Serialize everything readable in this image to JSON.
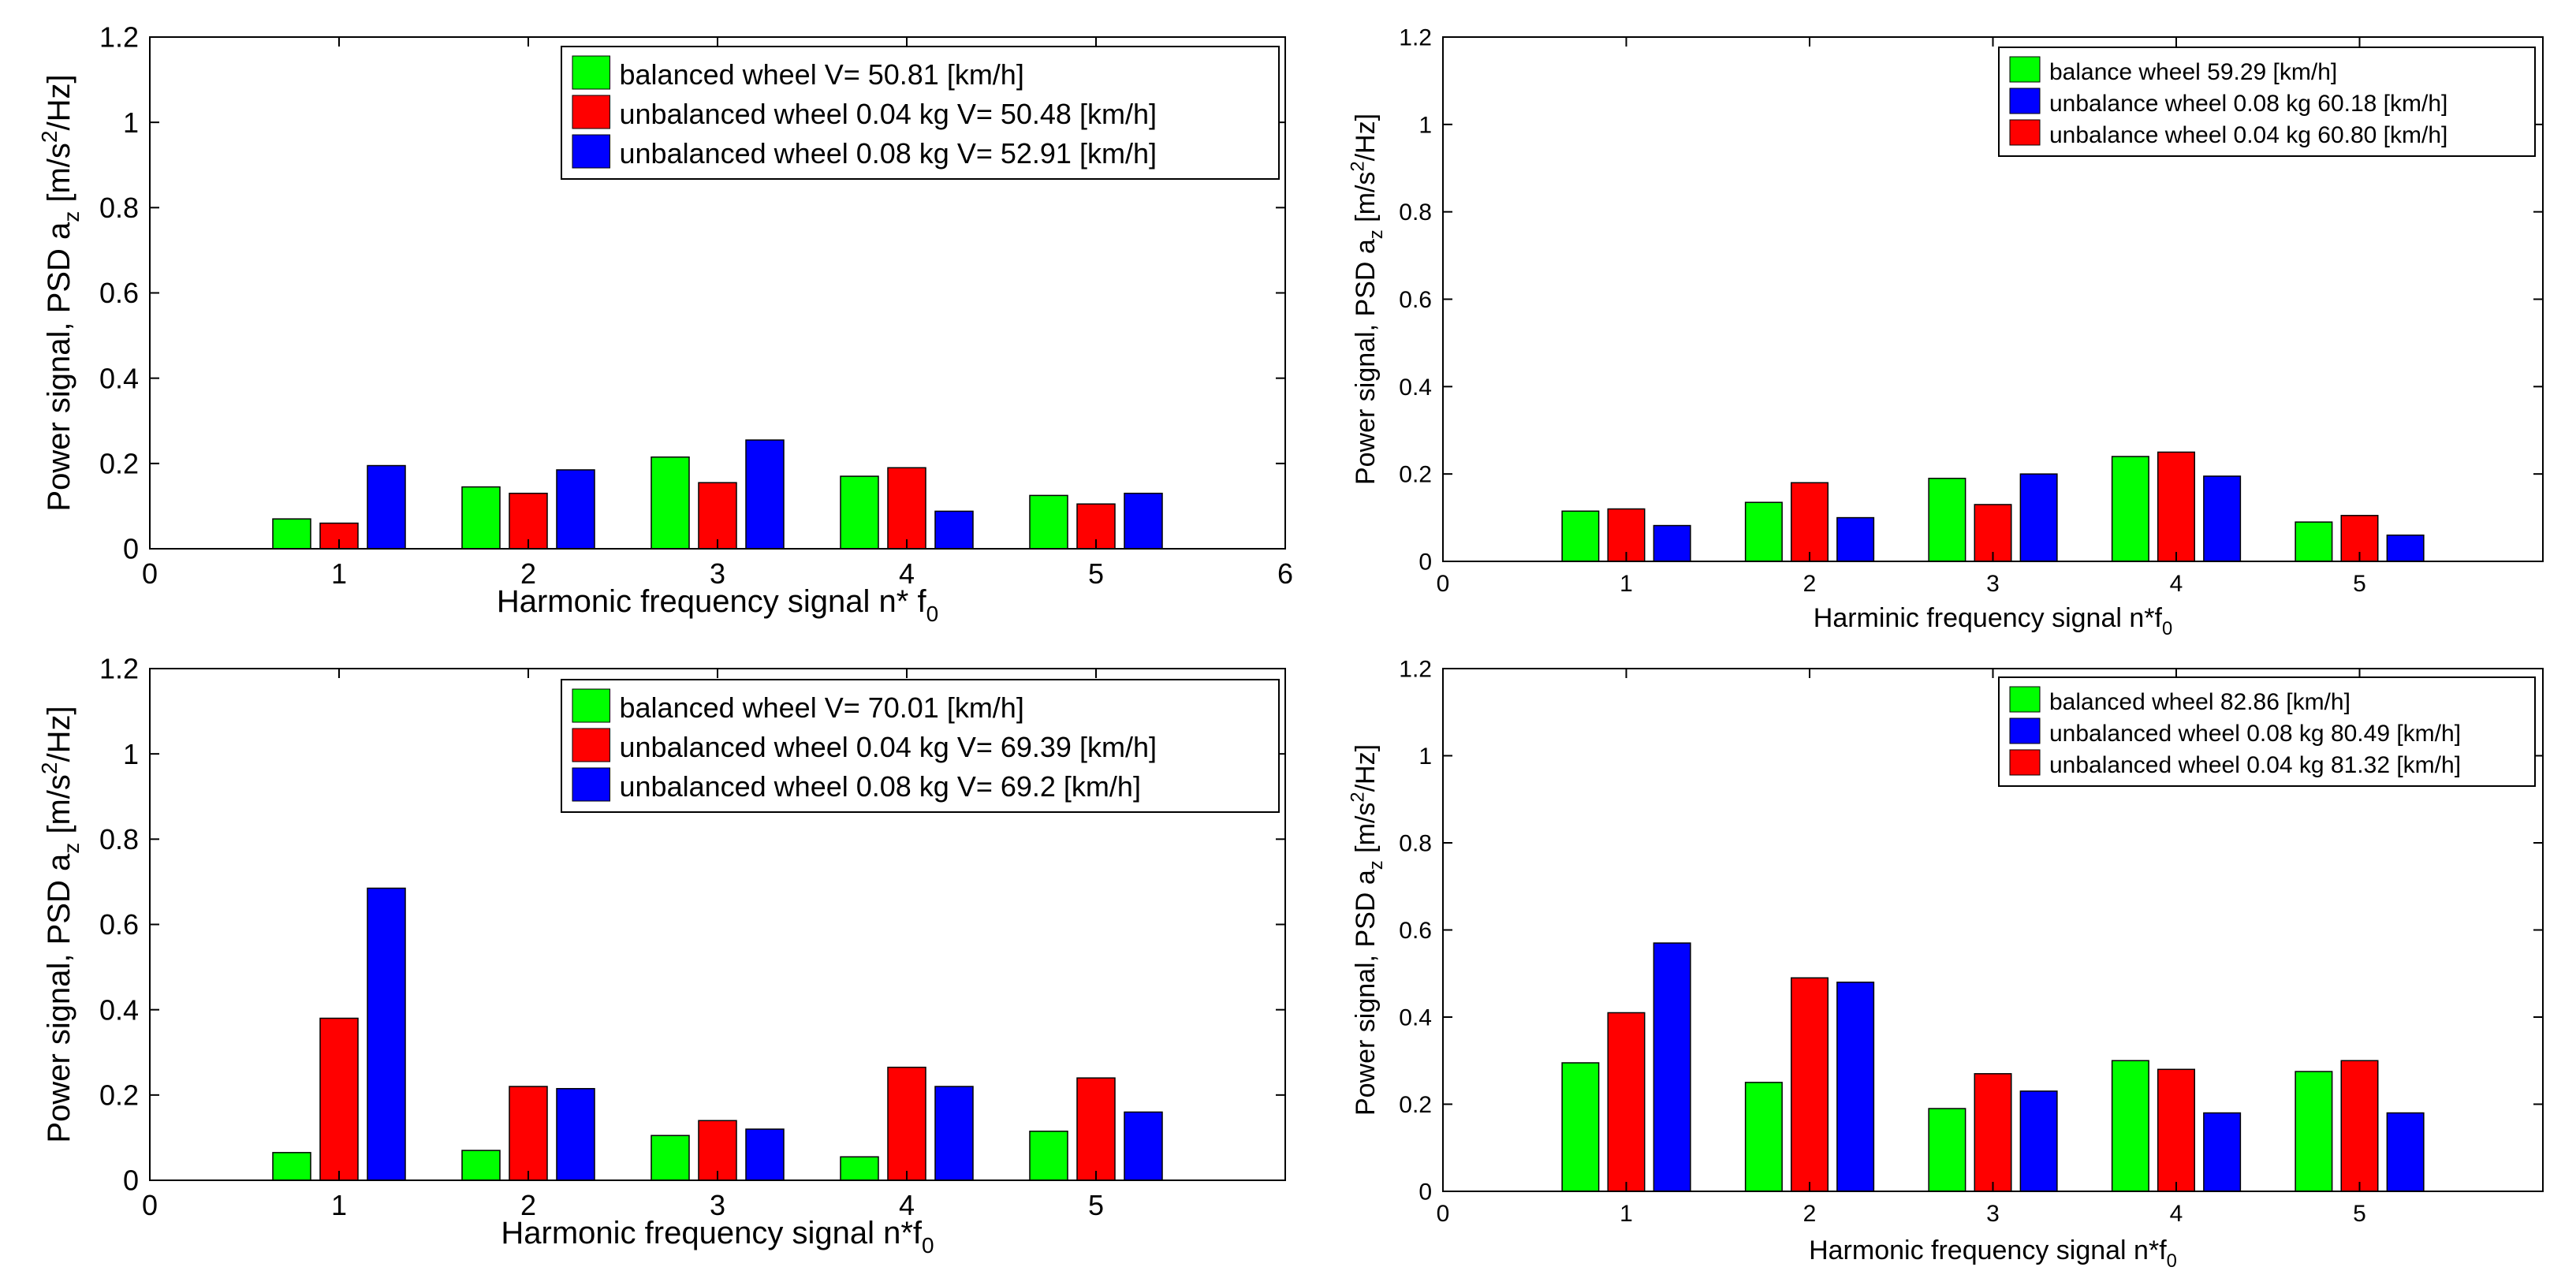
{
  "colors": {
    "green": "#00ff00",
    "red": "#ff0000",
    "blue": "#0000ff",
    "axis": "#000000"
  },
  "chart_data": [
    {
      "type": "bar",
      "title": "",
      "xlabel_main": "Harmonic frequency signal n* f",
      "xlabel_sub": "0",
      "ylabel_main": "Power signal, PSD a",
      "ylabel_sub": "z",
      "ylabel_unit_pre": " [m/s",
      "ylabel_unit_sup": "2",
      "ylabel_unit_post": "/Hz]",
      "xlim": [
        0,
        6
      ],
      "ylim": [
        0,
        1.2
      ],
      "xticks": [
        "0",
        "1",
        "2",
        "3",
        "4",
        "5",
        "6"
      ],
      "yticks": [
        "0",
        "0.2",
        "0.4",
        "0.6",
        "0.8",
        "1",
        "1.2"
      ],
      "categories": [
        1,
        2,
        3,
        4,
        5
      ],
      "series": [
        {
          "name": "balanced wheel V= 50.81 [km/h]",
          "color": "green",
          "values": [
            0.07,
            0.145,
            0.215,
            0.17,
            0.125
          ]
        },
        {
          "name": "unbalanced wheel 0.04 kg V= 50.48 [km/h]",
          "color": "red",
          "values": [
            0.06,
            0.13,
            0.155,
            0.19,
            0.105
          ]
        },
        {
          "name": "unbalanced wheel 0.08 kg V= 52.91 [km/h]",
          "color": "blue",
          "values": [
            0.195,
            0.185,
            0.255,
            0.088,
            0.13
          ]
        }
      ]
    },
    {
      "type": "bar",
      "title": "",
      "xlabel_main": "Harminic frequency signal n*f",
      "xlabel_sub": "0",
      "ylabel_main": "Power signal, PSD a",
      "ylabel_sub": "z",
      "ylabel_unit_pre": " [m/s",
      "ylabel_unit_sup": "2",
      "ylabel_unit_post": "/Hz]",
      "xlim": [
        0,
        6
      ],
      "ylim": [
        0,
        1.2
      ],
      "xticks": [
        "0",
        "1",
        "2",
        "3",
        "4",
        "5"
      ],
      "yticks": [
        "0",
        "0.2",
        "0.4",
        "0.6",
        "0.8",
        "1",
        "1.2"
      ],
      "categories": [
        1,
        2,
        3,
        4,
        5
      ],
      "series": [
        {
          "name": "balance wheel 59.29 [km/h]",
          "color": "green",
          "values": [
            0.115,
            0.135,
            0.19,
            0.24,
            0.09
          ]
        },
        {
          "name": "unbalance wheel 0.08 kg 60.18 [km/h]",
          "color": "blue",
          "values": [
            0.082,
            0.1,
            0.2,
            0.195,
            0.06
          ]
        },
        {
          "name": "unbalance wheel 0.04 kg 60.80 [km/h]",
          "color": "red",
          "values": [
            0.12,
            0.18,
            0.13,
            0.25,
            0.105
          ]
        }
      ],
      "bar_order": [
        0,
        2,
        1
      ]
    },
    {
      "type": "bar",
      "title": "",
      "xlabel_main": "Harmonic frequency signal n*f",
      "xlabel_sub": "0",
      "ylabel_main": "Power signal, PSD a",
      "ylabel_sub": "z",
      "ylabel_unit_pre": " [m/s",
      "ylabel_unit_sup": "2",
      "ylabel_unit_post": "/Hz]",
      "xlim": [
        0,
        6
      ],
      "ylim": [
        0,
        1.2
      ],
      "xticks": [
        "0",
        "1",
        "2",
        "3",
        "4",
        "5"
      ],
      "yticks": [
        "0",
        "0.2",
        "0.4",
        "0.6",
        "0.8",
        "1",
        "1.2"
      ],
      "categories": [
        1,
        2,
        3,
        4,
        5
      ],
      "series": [
        {
          "name": "balanced wheel V= 70.01 [km/h]",
          "color": "green",
          "values": [
            0.065,
            0.07,
            0.105,
            0.055,
            0.115
          ]
        },
        {
          "name": "unbalanced wheel 0.04 kg V= 69.39 [km/h]",
          "color": "red",
          "values": [
            0.38,
            0.22,
            0.14,
            0.265,
            0.24
          ]
        },
        {
          "name": "unbalanced wheel 0.08 kg V= 69.2 [km/h]",
          "color": "blue",
          "values": [
            0.685,
            0.215,
            0.12,
            0.22,
            0.16
          ]
        }
      ]
    },
    {
      "type": "bar",
      "title": "",
      "xlabel_main": "Harmonic frequency signal n*f",
      "xlabel_sub": "0",
      "ylabel_main": "Power signal, PSD a",
      "ylabel_sub": "z",
      "ylabel_unit_pre": " [m/s",
      "ylabel_unit_sup": "2",
      "ylabel_unit_post": "/Hz]",
      "xlim": [
        0,
        6
      ],
      "ylim": [
        0,
        1.2
      ],
      "xticks": [
        "0",
        "1",
        "2",
        "3",
        "4",
        "5"
      ],
      "yticks": [
        "0",
        "0.2",
        "0.4",
        "0.6",
        "0.8",
        "1",
        "1.2"
      ],
      "categories": [
        1,
        2,
        3,
        4,
        5
      ],
      "series": [
        {
          "name": "balanced wheel 82.86 [km/h]",
          "color": "green",
          "values": [
            0.295,
            0.25,
            0.19,
            0.3,
            0.275
          ]
        },
        {
          "name": "unbalanced wheel 0.08 kg 80.49 [km/h]",
          "color": "blue",
          "values": [
            0.57,
            0.48,
            0.23,
            0.18,
            0.18
          ]
        },
        {
          "name": "unbalanced wheel 0.04 kg 81.32 [km/h]",
          "color": "red",
          "values": [
            0.41,
            0.49,
            0.27,
            0.28,
            0.3
          ]
        }
      ],
      "bar_order": [
        0,
        2,
        1
      ]
    }
  ]
}
